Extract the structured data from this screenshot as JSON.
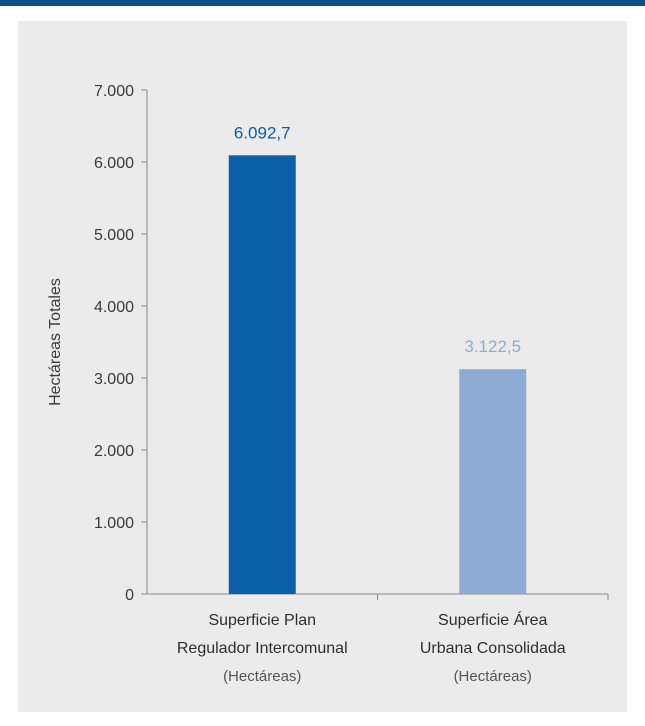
{
  "colors": {
    "header": "#0d4f87",
    "panel": "#ebebeb",
    "axis": "#8a8a8a"
  },
  "chart_data": {
    "type": "bar",
    "ylabel": "Hectáreas Totales",
    "ylim": [
      0,
      7000
    ],
    "yticks": [
      0,
      1000,
      2000,
      3000,
      4000,
      5000,
      6000,
      7000
    ],
    "ytick_labels": [
      "0",
      "1.000",
      "2.000",
      "3.000",
      "4.000",
      "5.000",
      "6.000",
      "7.000"
    ],
    "grid": false,
    "legend": "none",
    "categories": [
      {
        "line1": "Superficie Plan",
        "line2": "Regulador Intercomunal",
        "unit": "(Hectáreas)"
      },
      {
        "line1": "Superficie Área",
        "line2": "Urbana Consolidada",
        "unit": "(Hectáreas)"
      }
    ],
    "values": [
      6092.7,
      3122.5
    ],
    "data_labels": [
      "6.092,7",
      "3.122,5"
    ],
    "bar_colors": [
      "#0a5fa8",
      "#8eabd6"
    ],
    "label_colors": [
      "#0a5fa8",
      "#8eabd6"
    ]
  }
}
